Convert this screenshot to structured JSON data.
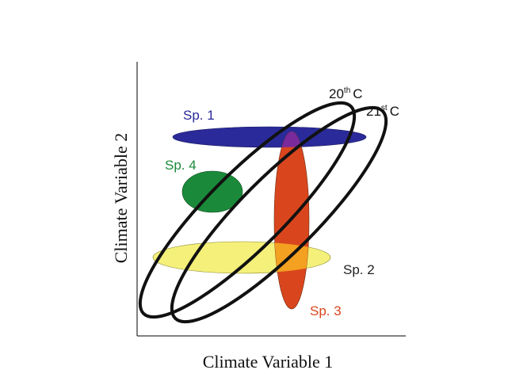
{
  "axes": {
    "xlabel": "Climate Variable 1",
    "ylabel": "Climate Variable 2"
  },
  "climate_periods": [
    {
      "id": "c20",
      "base": "20",
      "suffix": "th",
      "unit": "C"
    },
    {
      "id": "c21",
      "base": "21",
      "suffix": "st",
      "unit": "C"
    }
  ],
  "species": [
    {
      "id": "sp1",
      "label": "Sp. 1",
      "color": "#2a2a9a",
      "label_color": "#2a2a9a"
    },
    {
      "id": "sp2",
      "label": "Sp. 2",
      "color": "#f4f07a",
      "label_color": "#222222"
    },
    {
      "id": "sp3",
      "label": "Sp. 3",
      "color": "#d9461e",
      "label_color": "#d9461e"
    },
    {
      "id": "sp4",
      "label": "Sp. 4",
      "color": "#1a8a3a",
      "label_color": "#1a8a3a"
    }
  ],
  "overlap_colors": {
    "sp1_sp3": "#7a2a9a",
    "sp2_sp3": "#f4a020"
  }
}
